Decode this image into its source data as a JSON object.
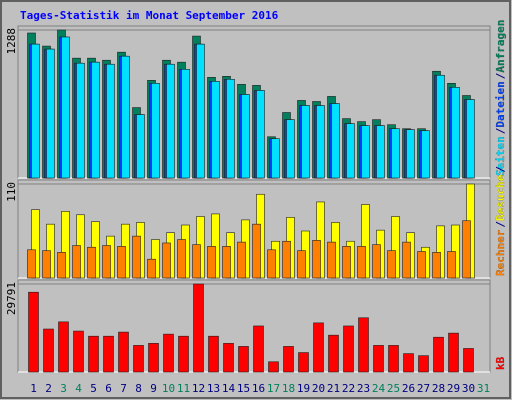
{
  "chart_data": [
    {
      "type": "bar",
      "title": "Tages-Statistik im Monat September 2016",
      "legend_separator": "/",
      "ylim": [
        0,
        1288
      ],
      "yticks": [
        1288
      ],
      "grid": true,
      "series": [
        {
          "name": "Anfragen",
          "color": "#00805c",
          "values": [
            1262,
            1148,
            1288,
            1043,
            1043,
            1025,
            1095,
            613,
            850,
            1025,
            1008,
            1235,
            876,
            885,
            815,
            806,
            359,
            570,
            675,
            666,
            710,
            517,
            491,
            508,
            464,
            429,
            429,
            929,
            824,
            718,
            null
          ]
        },
        {
          "name": "Dateien",
          "color": "#0040ff",
          "values": [
            1165,
            1122,
            1227,
            999,
            1008,
            990,
            1060,
            552,
            824,
            990,
            946,
            1165,
            841,
            859,
            727,
            762,
            342,
            508,
            631,
            631,
            648,
            473,
            456,
            456,
            429,
            421,
            412,
            894,
            789,
            683,
            null
          ]
        },
        {
          "name": "Seiten",
          "color": "#00e0ff",
          "values": [
            1165,
            1122,
            1227,
            999,
            1008,
            990,
            1060,
            552,
            824,
            990,
            946,
            1165,
            841,
            859,
            727,
            762,
            342,
            508,
            631,
            631,
            648,
            473,
            456,
            456,
            429,
            421,
            412,
            894,
            789,
            683,
            null
          ]
        }
      ]
    },
    {
      "type": "bar",
      "ylim": [
        0,
        110
      ],
      "yticks": [
        110
      ],
      "grid": true,
      "series": [
        {
          "name": "Besuche",
          "color": "#ffff00",
          "values": [
            80,
            63,
            78,
            74,
            66,
            49,
            63,
            65,
            45,
            53,
            62,
            72,
            75,
            53,
            68,
            98,
            43,
            71,
            55,
            89,
            65,
            43,
            86,
            56,
            72,
            53,
            36,
            61,
            62,
            110,
            null
          ]
        },
        {
          "name": "Rechner",
          "color": "#ff8000",
          "values": [
            33,
            32,
            30,
            38,
            36,
            38,
            37,
            49,
            22,
            41,
            45,
            39,
            37,
            37,
            42,
            63,
            33,
            43,
            32,
            44,
            42,
            37,
            37,
            39,
            32,
            42,
            31,
            30,
            31,
            67,
            null
          ]
        }
      ]
    },
    {
      "type": "bar",
      "ylim": [
        0,
        29791
      ],
      "yticks": [
        29791
      ],
      "grid": true,
      "categories": [
        "1",
        "2",
        "3",
        "4",
        "5",
        "6",
        "7",
        "8",
        "9",
        "10",
        "11",
        "12",
        "13",
        "14",
        "15",
        "16",
        "17",
        "18",
        "19",
        "20",
        "21",
        "22",
        "23",
        "24",
        "25",
        "26",
        "27",
        "28",
        "29",
        "30",
        "31"
      ],
      "label_colors": [
        "#000080",
        "#000080",
        "#00805c",
        "#00805c",
        "#000080",
        "#000080",
        "#000080",
        "#000080",
        "#000080",
        "#00805c",
        "#00805c",
        "#000080",
        "#000080",
        "#000080",
        "#000080",
        "#000080",
        "#00805c",
        "#00805c",
        "#000080",
        "#000080",
        "#000080",
        "#000080",
        "#000080",
        "#00805c",
        "#00805c",
        "#000080",
        "#000080",
        "#000080",
        "#000080",
        "#000080",
        "#00805c"
      ],
      "series": [
        {
          "name": "kB",
          "color": "#ff0000",
          "values": [
            27019,
            14549,
            16974,
            13856,
            12124,
            12124,
            13510,
            9006,
            9699,
            12817,
            12124,
            29791,
            12124,
            9699,
            8660,
            15588,
            3464,
            8660,
            6582,
            16627,
            12470,
            15588,
            18359,
            9006,
            9006,
            6235,
            5542,
            11778,
            13164,
            7967,
            null
          ]
        }
      ]
    }
  ]
}
